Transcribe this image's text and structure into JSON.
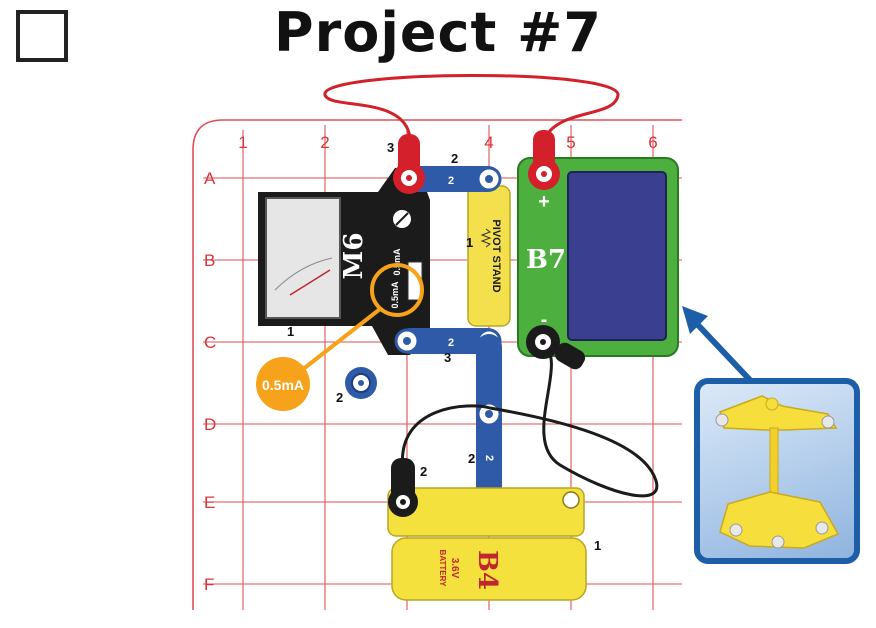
{
  "title": "Project #7",
  "grid": {
    "columns": [
      "1",
      "2",
      "3",
      "4",
      "5",
      "6"
    ],
    "rows": [
      "A",
      "B",
      "C",
      "D",
      "E",
      "F"
    ]
  },
  "parts": {
    "meter": {
      "label": "M6",
      "scale": "0.5mA",
      "range_text": "0.5mA"
    },
    "solar": {
      "label": "B7",
      "plus": "+",
      "minus": "-"
    },
    "pivot": {
      "label": "PIVOT STAND"
    },
    "battery": {
      "label": "B4",
      "sub1": "3.6V",
      "sub2": "BATTERY"
    }
  },
  "callout": {
    "text": "0.5mA"
  },
  "levels": {
    "meter_top": "3",
    "wire_a": "2",
    "wire_b": "2",
    "pivot_level": "1",
    "meter_level": "1",
    "wire_c": "2",
    "wire_c_level": "3",
    "small_snap": "2",
    "vertical_wire": "2",
    "vertical_level": "2",
    "battery_jumper": "2",
    "battery_level": "1"
  },
  "colors": {
    "grid": "#d9343a",
    "wire_blue": "#2f5aa8",
    "solar_green": "#4caf3e",
    "solar_panel": "#3b3f8f",
    "pivot_yellow": "#f4e04c",
    "battery_yellow": "#f5e13e",
    "callout_orange": "#f7a21b",
    "inset_border": "#1d5ea8"
  }
}
